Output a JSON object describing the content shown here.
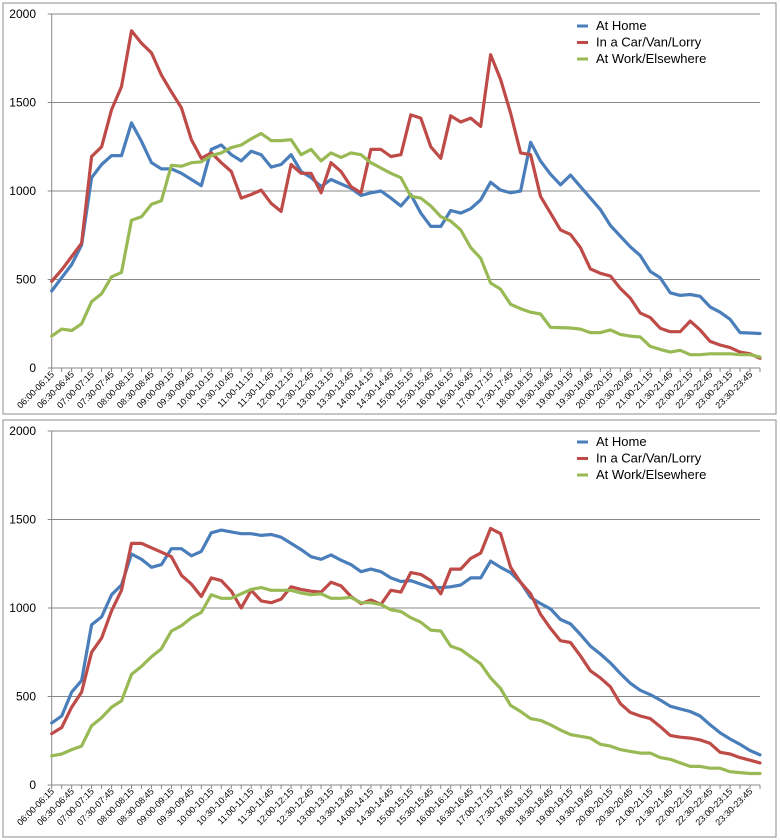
{
  "chart_data": [
    {
      "type": "line",
      "title": "",
      "xlabel": "",
      "ylabel": "",
      "ylim": [
        0,
        2000
      ],
      "yticks": [
        "0",
        "500",
        "1000",
        "1500",
        "2000"
      ],
      "grid": "horizontal",
      "legend_position": "top-right",
      "x_tick_labels": [
        "06:00-06:15",
        "06:30-06:45",
        "07:00-07:15",
        "07:30-07:45",
        "08:00-08:15",
        "08:30-08:45",
        "09:00-09:15",
        "09:30-09:45",
        "10:00-10:15",
        "10:30-10:45",
        "11:00-11:15",
        "11:30-11:45",
        "12:00-12:15",
        "12:30-12:45",
        "13:00-13:15",
        "13:30-13:45",
        "14:00-14:15",
        "14:30-14:45",
        "15:00-15:15",
        "15:30-15:45",
        "16:00-16:15",
        "16:30-16:45",
        "17:00-17:15",
        "17:30-17:45",
        "18:00-18:15",
        "18:30-18:45",
        "19:00-19:15",
        "19:30-19:45",
        "20:00-20:15",
        "20:30-20:45",
        "21:00-21:15",
        "21:30-21:45",
        "22:00-22:15",
        "22:30-22:45",
        "23:00-23:15",
        "23:30-23:45"
      ],
      "series": [
        {
          "name": "At Home",
          "color": "#4a7ebb",
          "values": [
            435,
            510,
            585,
            695,
            1075,
            1150,
            1200,
            1200,
            1385,
            1280,
            1160,
            1125,
            1125,
            1100,
            1065,
            1030,
            1235,
            1260,
            1205,
            1170,
            1225,
            1205,
            1135,
            1150,
            1205,
            1110,
            1075,
            1025,
            1065,
            1040,
            1015,
            975,
            990,
            1000,
            960,
            915,
            980,
            875,
            800,
            800,
            890,
            875,
            900,
            950,
            1050,
            1005,
            990,
            1000,
            1275,
            1170,
            1095,
            1035,
            1090,
            1025,
            960,
            895,
            805,
            745,
            685,
            635,
            545,
            510,
            425,
            410,
            415,
            405,
            345,
            315,
            275,
            200,
            198,
            195
          ]
        },
        {
          "name": "In a Car/Van/Lorry",
          "color": "#be4b48",
          "values": [
            490,
            555,
            630,
            705,
            1195,
            1250,
            1460,
            1590,
            1905,
            1835,
            1780,
            1655,
            1560,
            1470,
            1290,
            1185,
            1215,
            1160,
            1110,
            960,
            980,
            1005,
            930,
            885,
            1150,
            1100,
            1100,
            990,
            1160,
            1110,
            1025,
            990,
            1235,
            1235,
            1195,
            1205,
            1430,
            1412,
            1250,
            1185,
            1425,
            1390,
            1412,
            1365,
            1770,
            1630,
            1440,
            1215,
            1205,
            970,
            875,
            780,
            755,
            680,
            560,
            535,
            520,
            450,
            395,
            310,
            285,
            225,
            205,
            205,
            265,
            215,
            150,
            130,
            115,
            90,
            80,
            55
          ]
        },
        {
          "name": "At Work/Elsewhere",
          "color": "#98b954",
          "values": [
            180,
            220,
            212,
            250,
            375,
            420,
            515,
            540,
            835,
            855,
            925,
            945,
            1145,
            1140,
            1160,
            1165,
            1200,
            1215,
            1245,
            1260,
            1295,
            1325,
            1285,
            1285,
            1290,
            1205,
            1235,
            1170,
            1215,
            1190,
            1215,
            1205,
            1160,
            1130,
            1100,
            1075,
            970,
            960,
            915,
            855,
            830,
            780,
            680,
            620,
            480,
            445,
            360,
            335,
            315,
            305,
            230,
            228,
            226,
            220,
            200,
            200,
            215,
            190,
            180,
            175,
            122,
            105,
            90,
            100,
            75,
            75,
            80,
            80,
            80,
            75,
            75,
            62
          ]
        }
      ]
    },
    {
      "type": "line",
      "title": "",
      "xlabel": "",
      "ylabel": "",
      "ylim": [
        0,
        2000
      ],
      "yticks": [
        "0",
        "500",
        "1000",
        "1500",
        "2000"
      ],
      "grid": "horizontal",
      "legend_position": "top-right",
      "x_tick_labels": [
        "06:00-06:15",
        "06:30-06:45",
        "07:00-07:15",
        "07:30-07:45",
        "08:00-08:15",
        "08:30-08:45",
        "09:00-09:15",
        "09:30-09:45",
        "10:00-10:15",
        "10:30-10:45",
        "11:00-11:15",
        "11:30-11:45",
        "12:00-12:15",
        "12:30-12:45",
        "13:00-13:15",
        "13:30-13:45",
        "14:00-14:15",
        "14:30-14:45",
        "15:00-15:15",
        "15:30-15:45",
        "16:00-16:15",
        "16:30-16:45",
        "17:00-17:15",
        "17:30-17:45",
        "18:00-18:15",
        "18:30-18:45",
        "19:00-19:15",
        "19:30-19:45",
        "20:00-20:15",
        "20:30-20:45",
        "21:00-21:15",
        "21:30-21:45",
        "22:00-22:15",
        "22:30-22:45",
        "23:00-23:15",
        "23:30-23:45"
      ],
      "series": [
        {
          "name": "At Home",
          "color": "#4a7ebb",
          "values": [
            350,
            390,
            525,
            590,
            905,
            950,
            1075,
            1130,
            1305,
            1275,
            1230,
            1245,
            1335,
            1335,
            1295,
            1320,
            1425,
            1440,
            1430,
            1420,
            1420,
            1410,
            1415,
            1400,
            1365,
            1330,
            1290,
            1275,
            1300,
            1270,
            1245,
            1205,
            1220,
            1205,
            1170,
            1150,
            1155,
            1135,
            1115,
            1115,
            1120,
            1130,
            1170,
            1170,
            1265,
            1230,
            1200,
            1145,
            1060,
            1025,
            995,
            935,
            910,
            850,
            785,
            740,
            690,
            630,
            575,
            535,
            510,
            480,
            445,
            430,
            415,
            390,
            340,
            295,
            260,
            230,
            195,
            170
          ]
        },
        {
          "name": "In a Car/Van/Lorry",
          "color": "#be4b48",
          "values": [
            290,
            325,
            440,
            525,
            750,
            830,
            985,
            1100,
            1365,
            1365,
            1340,
            1315,
            1290,
            1185,
            1135,
            1065,
            1170,
            1155,
            1095,
            1000,
            1100,
            1040,
            1030,
            1050,
            1120,
            1105,
            1095,
            1090,
            1145,
            1125,
            1065,
            1025,
            1045,
            1020,
            1100,
            1090,
            1200,
            1190,
            1155,
            1080,
            1220,
            1220,
            1280,
            1310,
            1450,
            1420,
            1230,
            1145,
            1080,
            965,
            885,
            815,
            805,
            730,
            645,
            605,
            555,
            460,
            410,
            390,
            375,
            330,
            280,
            270,
            265,
            255,
            235,
            185,
            175,
            155,
            140,
            125
          ]
        },
        {
          "name": "At Work/Elsewhere",
          "color": "#98b954",
          "values": [
            165,
            175,
            200,
            220,
            335,
            380,
            440,
            475,
            625,
            670,
            725,
            770,
            870,
            900,
            945,
            975,
            1075,
            1055,
            1055,
            1080,
            1105,
            1115,
            1100,
            1100,
            1100,
            1085,
            1075,
            1080,
            1055,
            1055,
            1060,
            1030,
            1030,
            1020,
            990,
            980,
            945,
            920,
            875,
            870,
            785,
            765,
            725,
            685,
            605,
            545,
            450,
            415,
            375,
            365,
            340,
            310,
            285,
            275,
            265,
            230,
            220,
            200,
            190,
            180,
            180,
            155,
            145,
            125,
            105,
            105,
            95,
            95,
            75,
            70,
            65,
            65
          ]
        }
      ]
    }
  ]
}
